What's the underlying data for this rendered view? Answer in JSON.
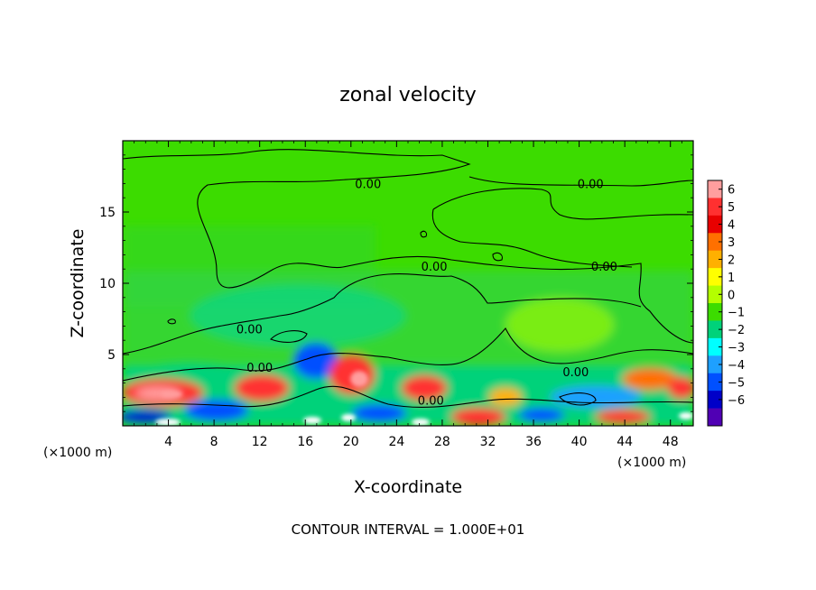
{
  "chart_data": {
    "type": "heatmap",
    "title": "zonal velocity",
    "xlabel": "X-coordinate",
    "ylabel": "Z-coordinate",
    "x_unit_left": "(×1000 m)",
    "x_unit_right": "(×1000 m)",
    "footer": "CONTOUR INTERVAL = 1.000E+01",
    "xlim": [
      0,
      50
    ],
    "ylim": [
      0,
      20
    ],
    "x_ticks": [
      4,
      8,
      12,
      16,
      20,
      24,
      28,
      32,
      36,
      40,
      44,
      48
    ],
    "y_ticks": [
      5,
      10,
      15
    ],
    "colorbar": {
      "ticks": [
        6,
        5,
        4,
        3,
        2,
        1,
        0,
        -1,
        -2,
        -3,
        -4,
        -5,
        -6
      ],
      "colors": [
        "#ff9e9e",
        "#ff3030",
        "#e80000",
        "#ff7000",
        "#ffb000",
        "#ffff00",
        "#b4ff00",
        "#3cdc00",
        "#00d27a",
        "#00ffff",
        "#1ea0ff",
        "#0050ff",
        "#0000c8",
        "#5000b4"
      ]
    },
    "contour_labels": [
      {
        "text": "0.00",
        "x": 21.5,
        "z": 17.0
      },
      {
        "text": "0.00",
        "x": 41.0,
        "z": 17.0
      },
      {
        "text": "0.00",
        "x": 27.3,
        "z": 11.2
      },
      {
        "text": "0.00",
        "x": 42.2,
        "z": 11.2
      },
      {
        "text": "0.00",
        "x": 11.1,
        "z": 6.8
      },
      {
        "text": "0.00",
        "x": 12.0,
        "z": 4.1
      },
      {
        "text": "0.00",
        "x": 39.7,
        "z": 3.8
      },
      {
        "text": "0.00",
        "x": 27.0,
        "z": 1.8
      }
    ]
  }
}
